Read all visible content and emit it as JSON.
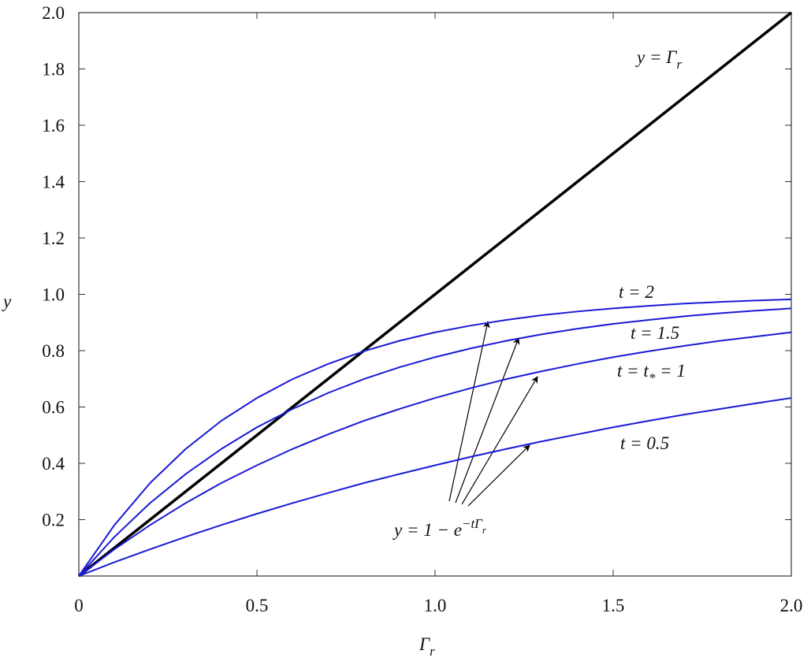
{
  "chart_data": {
    "type": "line",
    "x_label": [
      {
        "text": "Γ"
      },
      {
        "text": "r",
        "style": "sub"
      }
    ],
    "y_label": [
      {
        "text": "y"
      }
    ],
    "x": [
      0,
      0.1,
      0.2,
      0.3,
      0.4,
      0.5,
      0.6,
      0.7,
      0.8,
      0.9,
      1,
      1.1,
      1.2,
      1.3,
      1.4,
      1.5,
      1.6,
      1.7,
      1.8,
      1.9,
      2
    ],
    "series": [
      {
        "name": [
          {
            "text": "y = Γ"
          },
          {
            "text": "r",
            "style": "sub"
          }
        ],
        "color": "#000000",
        "values": [
          0,
          0.1,
          0.2,
          0.3,
          0.4,
          0.5,
          0.6,
          0.7,
          0.8,
          0.9,
          1,
          1.1,
          1.2,
          1.3,
          1.4,
          1.5,
          1.6,
          1.7,
          1.8,
          1.9,
          2
        ]
      },
      {
        "name": [
          {
            "text": "t = 2"
          }
        ],
        "color": "#1a1ad6",
        "values": [
          0,
          0.181,
          0.33,
          0.451,
          0.551,
          0.632,
          0.699,
          0.753,
          0.798,
          0.835,
          0.865,
          0.889,
          0.909,
          0.926,
          0.939,
          0.95,
          0.959,
          0.967,
          0.973,
          0.978,
          0.982
        ]
      },
      {
        "name": [
          {
            "text": "t = 1.5"
          }
        ],
        "color": "#1a1ad6",
        "values": [
          0,
          0.139,
          0.259,
          0.362,
          0.451,
          0.528,
          0.593,
          0.65,
          0.699,
          0.741,
          0.777,
          0.808,
          0.835,
          0.858,
          0.878,
          0.895,
          0.909,
          0.922,
          0.933,
          0.942,
          0.95
        ]
      },
      {
        "name": [
          {
            "text": "t = t"
          },
          {
            "text": "*",
            "style": "sub"
          },
          {
            "text": " = 1"
          }
        ],
        "color": "#1a1ad6",
        "values": [
          0,
          0.095,
          0.181,
          0.259,
          0.33,
          0.393,
          0.451,
          0.503,
          0.551,
          0.593,
          0.632,
          0.667,
          0.699,
          0.727,
          0.753,
          0.777,
          0.798,
          0.817,
          0.835,
          0.85,
          0.865
        ]
      },
      {
        "name": [
          {
            "text": "t = 0.5"
          }
        ],
        "color": "#1a1ad6",
        "values": [
          0,
          0.049,
          0.095,
          0.139,
          0.181,
          0.221,
          0.259,
          0.295,
          0.33,
          0.362,
          0.393,
          0.423,
          0.451,
          0.478,
          0.503,
          0.528,
          0.551,
          0.573,
          0.593,
          0.613,
          0.632
        ]
      }
    ],
    "annotation": [
      {
        "text": "y = 1 − e"
      },
      {
        "text": "−tΓ",
        "style": "sup"
      },
      {
        "text": "r",
        "style": "sup-sub"
      }
    ],
    "xlim": [
      0,
      2
    ],
    "ylim": [
      0,
      2
    ],
    "xticks": [
      0,
      0.5,
      {
        "value": 1,
        "label": "1.0"
      },
      1.5,
      {
        "value": 2,
        "label": "2.0"
      }
    ],
    "yticks": [
      0.2,
      0.4,
      0.6,
      0.8,
      {
        "value": 1,
        "label": "1.0"
      },
      1.2,
      1.4,
      1.6,
      1.8,
      {
        "value": 2,
        "label": "2.0"
      }
    ]
  }
}
